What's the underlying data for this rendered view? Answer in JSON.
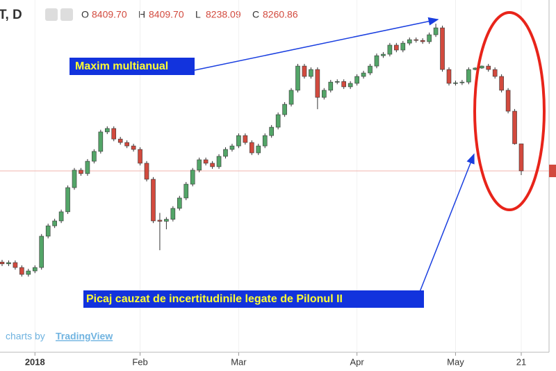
{
  "chart_data": {
    "type": "candlestick",
    "title": "T, D",
    "ohlc_names": [
      "O",
      "H",
      "L",
      "C"
    ],
    "ohlc_value_labels": [
      "8409.70",
      "8409.70",
      "8238.09",
      "8260.86"
    ],
    "categories": [
      null,
      null,
      null,
      null,
      null,
      "2018",
      null,
      null,
      null,
      null,
      null,
      null,
      null,
      null,
      null,
      null,
      null,
      null,
      null,
      null,
      null,
      "Feb",
      null,
      null,
      null,
      null,
      null,
      null,
      null,
      null,
      null,
      null,
      null,
      null,
      null,
      null,
      "Mar",
      null,
      null,
      null,
      null,
      null,
      null,
      null,
      null,
      null,
      null,
      null,
      null,
      null,
      null,
      null,
      null,
      null,
      "Apr",
      null,
      null,
      null,
      null,
      null,
      null,
      null,
      null,
      null,
      null,
      null,
      null,
      null,
      null,
      "May",
      null,
      null,
      null,
      null,
      null,
      null,
      null,
      null,
      null,
      "21"
    ],
    "open": [
      7760,
      7750,
      7757,
      7730,
      7692,
      7711,
      7730,
      7902,
      7959,
      7986,
      8036,
      8169,
      8265,
      8246,
      8314,
      8368,
      8475,
      8494,
      8436,
      8417,
      8398,
      8379,
      8303,
      8215,
      7990,
      7984,
      7995,
      8055,
      8112,
      8188,
      8265,
      8322,
      8303,
      8284,
      8341,
      8379,
      8398,
      8455,
      8417,
      8360,
      8398,
      8455,
      8501,
      8570,
      8627,
      8704,
      8837,
      8780,
      8818,
      8665,
      8704,
      8749,
      8752,
      8723,
      8742,
      8780,
      8799,
      8837,
      8894,
      8902,
      8952,
      8925,
      8963,
      8982,
      8978,
      8971,
      9009,
      9047,
      8818,
      8742,
      8745,
      8749,
      8818,
      8826,
      8837,
      8818,
      8780,
      8704,
      8589,
      8409.7
    ],
    "high": [
      7772,
      7769,
      7769,
      7742,
      7723,
      7742,
      7914,
      7971,
      7998,
      8048,
      8181,
      8277,
      8277,
      8326,
      8380,
      8487,
      8506,
      8506,
      8448,
      8429,
      8410,
      8391,
      8315,
      8227,
      8030,
      8007,
      8067,
      8124,
      8200,
      8277,
      8334,
      8334,
      8315,
      8353,
      8391,
      8410,
      8467,
      8467,
      8429,
      8410,
      8467,
      8513,
      8582,
      8639,
      8716,
      8849,
      8849,
      8830,
      8830,
      8716,
      8761,
      8764,
      8764,
      8754,
      8792,
      8811,
      8849,
      8906,
      8914,
      8964,
      8964,
      8975,
      8994,
      8994,
      8990,
      9021,
      9070,
      9059,
      8830,
      8757,
      8761,
      8830,
      8830,
      8840,
      8849,
      8830,
      8792,
      8716,
      8601,
      8409.7
    ],
    "low": [
      7738,
      7738,
      7718,
      7680,
      7680,
      7699,
      7718,
      7890,
      7947,
      7974,
      8024,
      8157,
      8234,
      8234,
      8302,
      8356,
      8463,
      8424,
      8405,
      8386,
      8367,
      8291,
      8203,
      7974,
      7825,
      7940,
      7983,
      8043,
      8100,
      8176,
      8253,
      8291,
      8272,
      8272,
      8329,
      8367,
      8386,
      8405,
      8348,
      8348,
      8386,
      8443,
      8489,
      8558,
      8615,
      8692,
      8768,
      8768,
      8600,
      8653,
      8692,
      8737,
      8711,
      8711,
      8730,
      8768,
      8787,
      8825,
      8882,
      8890,
      8913,
      8913,
      8951,
      8966,
      8959,
      8959,
      8997,
      8806,
      8730,
      8730,
      8733,
      8737,
      8814,
      8822,
      8806,
      8768,
      8692,
      8577,
      8405,
      8238.09
    ],
    "close": [
      7750,
      7757,
      7730,
      7692,
      7711,
      7730,
      7902,
      7959,
      7986,
      8036,
      8169,
      8265,
      8246,
      8314,
      8368,
      8475,
      8494,
      8436,
      8417,
      8398,
      8379,
      8303,
      8215,
      7986,
      7984,
      7995,
      8055,
      8112,
      8188,
      8265,
      8322,
      8303,
      8284,
      8341,
      8379,
      8398,
      8455,
      8417,
      8360,
      8398,
      8455,
      8501,
      8570,
      8627,
      8704,
      8837,
      8780,
      8818,
      8665,
      8704,
      8749,
      8752,
      8723,
      8742,
      8780,
      8799,
      8837,
      8894,
      8902,
      8952,
      8925,
      8963,
      8982,
      8978,
      8971,
      9009,
      9047,
      8818,
      8742,
      8745,
      8749,
      8818,
      8826,
      8837,
      8818,
      8780,
      8704,
      8589,
      8410,
      8260.86
    ],
    "up_color": "#53a568",
    "down_color": "#d24a3e",
    "ylim": [
      7272,
      9200
    ],
    "annotations": [
      "Maxim multianual",
      "Picaj cauzat de incertitudinile legate de Pilonul II"
    ],
    "credit": [
      "charts by",
      "TradingView"
    ]
  }
}
